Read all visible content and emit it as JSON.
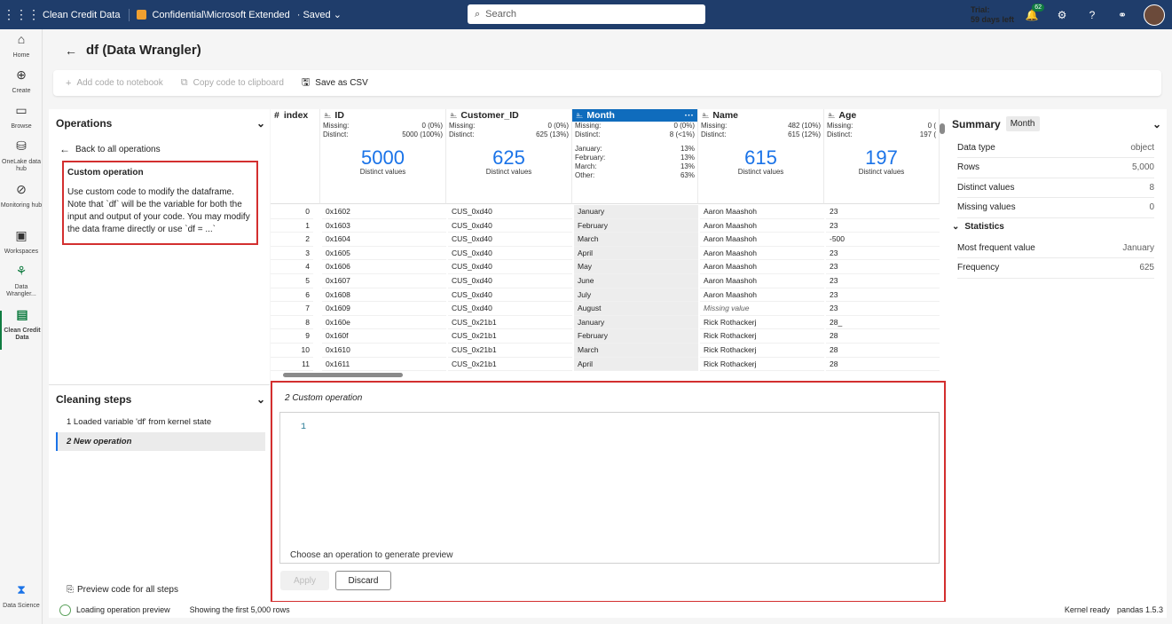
{
  "topbar": {
    "app_name": "Clean Credit Data",
    "sensitivity": "Confidential\\Microsoft Extended",
    "saved": "· Saved",
    "search_placeholder": "Search",
    "trial_line1": "Trial:",
    "trial_line2": "59 days left",
    "notif_count": "62"
  },
  "nav": [
    {
      "label": "Home",
      "icon": "home-icon"
    },
    {
      "label": "Create",
      "icon": "create-icon"
    },
    {
      "label": "Browse",
      "icon": "browse-icon"
    },
    {
      "label": "OneLake data hub",
      "icon": "onelake-icon"
    },
    {
      "label": "Monitoring hub",
      "icon": "monitoring-icon"
    },
    {
      "label": "Workspaces",
      "icon": "workspaces-icon"
    },
    {
      "label": "Data Wrangler...",
      "icon": "data-wrangler-icon"
    },
    {
      "label": "Clean Credit Data",
      "icon": "notebook-icon"
    },
    {
      "label": "Data Science",
      "icon": "data-science-icon"
    }
  ],
  "page": {
    "title": "df (Data Wrangler)"
  },
  "toolbar": {
    "add_code": "Add code to notebook",
    "copy_code": "Copy code to clipboard",
    "save_csv": "Save as CSV"
  },
  "operations": {
    "header": "Operations",
    "back": "Back to all operations",
    "custom_title": "Custom operation",
    "custom_desc": "Use custom code to modify the dataframe. Note that `df` will be the variable for both the input and output of your code. You may modify the data frame directly or use `df = ...`"
  },
  "cleaning": {
    "header": "Cleaning steps",
    "steps": [
      "1  Loaded variable 'df' from kernel state",
      "2  New operation"
    ],
    "preview_code": "Preview code for all steps"
  },
  "grid": {
    "index_label": "index",
    "missing_label": "Missing:",
    "distinct_label": "Distinct:",
    "distinct_values_label": "Distinct values",
    "columns": [
      {
        "name": "ID",
        "missing": "0 (0%)",
        "distinct": "5000 (100%)",
        "big": "5000"
      },
      {
        "name": "Customer_ID",
        "missing": "0 (0%)",
        "distinct": "625 (13%)",
        "big": "625"
      },
      {
        "name": "Month",
        "missing": "0 (0%)",
        "distinct": "8 (<1%)",
        "top": [
          [
            "January:",
            "13%"
          ],
          [
            "February:",
            "13%"
          ],
          [
            "March:",
            "13%"
          ],
          [
            "Other:",
            "63%"
          ]
        ]
      },
      {
        "name": "Name",
        "missing": "482 (10%)",
        "distinct": "615 (12%)",
        "big": "615"
      },
      {
        "name": "Age",
        "missing": "0 (",
        "distinct": "197 (",
        "big": "197"
      }
    ],
    "rows": [
      [
        "0",
        "0x1602",
        "CUS_0xd40",
        "January",
        "Aaron Maashoh",
        "23"
      ],
      [
        "1",
        "0x1603",
        "CUS_0xd40",
        "February",
        "Aaron Maashoh",
        "23"
      ],
      [
        "2",
        "0x1604",
        "CUS_0xd40",
        "March",
        "Aaron Maashoh",
        "-500"
      ],
      [
        "3",
        "0x1605",
        "CUS_0xd40",
        "April",
        "Aaron Maashoh",
        "23"
      ],
      [
        "4",
        "0x1606",
        "CUS_0xd40",
        "May",
        "Aaron Maashoh",
        "23"
      ],
      [
        "5",
        "0x1607",
        "CUS_0xd40",
        "June",
        "Aaron Maashoh",
        "23"
      ],
      [
        "6",
        "0x1608",
        "CUS_0xd40",
        "July",
        "Aaron Maashoh",
        "23"
      ],
      [
        "7",
        "0x1609",
        "CUS_0xd40",
        "August",
        "Missing value",
        "23"
      ],
      [
        "8",
        "0x160e",
        "CUS_0x21b1",
        "January",
        "Rick Rothackerj",
        "28_"
      ],
      [
        "9",
        "0x160f",
        "CUS_0x21b1",
        "February",
        "Rick Rothackerj",
        "28"
      ],
      [
        "10",
        "0x1610",
        "CUS_0x21b1",
        "March",
        "Rick Rothackerj",
        "28"
      ],
      [
        "11",
        "0x1611",
        "CUS_0x21b1",
        "April",
        "Rick Rothackerj",
        "28"
      ]
    ]
  },
  "editor": {
    "title": "2  Custom operation",
    "line_no": "1",
    "hint": "Choose an operation to generate preview",
    "apply": "Apply",
    "discard": "Discard"
  },
  "summary": {
    "header": "Summary",
    "column": "Month",
    "rows": [
      {
        "label": "Data type",
        "value": "object"
      },
      {
        "label": "Rows",
        "value": "5,000"
      },
      {
        "label": "Distinct values",
        "value": "8"
      },
      {
        "label": "Missing values",
        "value": "0"
      }
    ],
    "stats_header": "Statistics",
    "stats": [
      {
        "label": "Most frequent value",
        "value": "January"
      },
      {
        "label": "Frequency",
        "value": "625"
      }
    ]
  },
  "status": {
    "loading": "Loading operation preview",
    "showing": "Showing the first 5,000 rows",
    "kernel": "Kernel ready",
    "pandas": "pandas 1.5.3"
  },
  "colors": {
    "topbar": "#1f3d6b",
    "selected_col": "#0f6cbd",
    "highlight_border": "#d32f2f",
    "accent": "#107c41"
  }
}
